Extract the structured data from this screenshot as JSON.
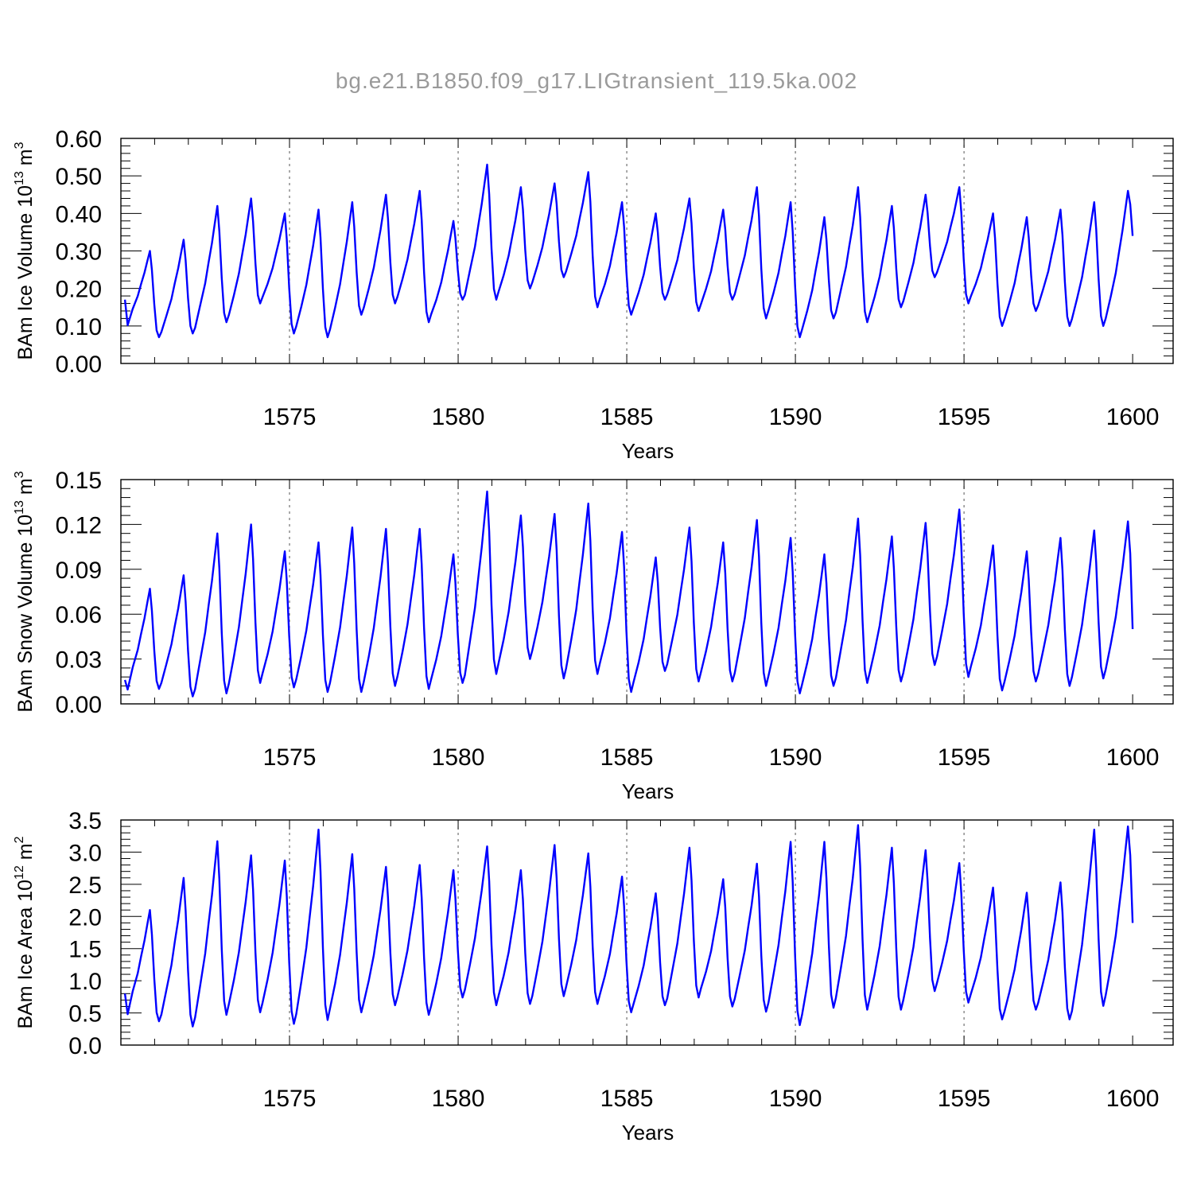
{
  "chart_data": {
    "title": "bg.e21.B1850.f09_g17.LIGtransient_119.5ka.002",
    "line_color": "#0000ff",
    "panels": [
      {
        "type": "line",
        "ylabel": {
          "main": "BAm Ice Volume 10",
          "exp": "13",
          "unit": " m",
          "unit_exp": "3"
        },
        "xlabel": "Years",
        "xlim": [
          1570.1,
          1600
        ],
        "ylim": [
          0,
          0.6
        ],
        "yticks": [
          "0.00",
          "0.10",
          "0.20",
          "0.30",
          "0.40",
          "0.50",
          "0.60"
        ],
        "ytick_values": [
          0,
          0.1,
          0.2,
          0.3,
          0.4,
          0.5,
          0.6
        ],
        "xticks": [
          "1575",
          "1580",
          "1585",
          "1590",
          "1595",
          "1600"
        ],
        "xtick_values": [
          1575,
          1580,
          1585,
          1590,
          1595,
          1600
        ],
        "grid_vertical_dashed": true,
        "peaks": [
          0.3,
          0.33,
          0.42,
          0.44,
          0.4,
          0.41,
          0.43,
          0.45,
          0.46,
          0.38,
          0.53,
          0.47,
          0.48,
          0.51,
          0.43,
          0.4,
          0.44,
          0.41,
          0.47,
          0.43,
          0.39,
          0.47,
          0.42,
          0.45,
          0.47,
          0.4,
          0.39,
          0.41,
          0.43,
          0.46
        ],
        "troughs": [
          0.07,
          0.08,
          0.11,
          0.16,
          0.08,
          0.07,
          0.13,
          0.16,
          0.11,
          0.17,
          0.17,
          0.2,
          0.23,
          0.15,
          0.13,
          0.17,
          0.14,
          0.17,
          0.12,
          0.07,
          0.12,
          0.11,
          0.15,
          0.23,
          0.16,
          0.1,
          0.14,
          0.1,
          0.1
        ],
        "start_value": 0.17,
        "end_value": 0.34
      },
      {
        "type": "line",
        "ylabel": {
          "main": "BAm Snow Volume 10",
          "exp": "13",
          "unit": " m",
          "unit_exp": "3"
        },
        "xlabel": "Years",
        "xlim": [
          1570.1,
          1600
        ],
        "ylim": [
          0,
          0.15
        ],
        "yticks": [
          "0.00",
          "0.03",
          "0.06",
          "0.09",
          "0.12",
          "0.15"
        ],
        "ytick_values": [
          0,
          0.03,
          0.06,
          0.09,
          0.12,
          0.15
        ],
        "xticks": [
          "1575",
          "1580",
          "1585",
          "1590",
          "1595",
          "1600"
        ],
        "xtick_values": [
          1575,
          1580,
          1585,
          1590,
          1595,
          1600
        ],
        "grid_vertical_dashed": true,
        "peaks": [
          0.077,
          0.086,
          0.114,
          0.12,
          0.102,
          0.108,
          0.118,
          0.117,
          0.117,
          0.1,
          0.142,
          0.126,
          0.127,
          0.134,
          0.115,
          0.098,
          0.118,
          0.108,
          0.123,
          0.111,
          0.1,
          0.124,
          0.112,
          0.121,
          0.13,
          0.106,
          0.102,
          0.111,
          0.116,
          0.122
        ],
        "troughs": [
          0.01,
          0.005,
          0.007,
          0.014,
          0.011,
          0.008,
          0.008,
          0.012,
          0.01,
          0.014,
          0.02,
          0.03,
          0.017,
          0.02,
          0.008,
          0.022,
          0.015,
          0.015,
          0.012,
          0.007,
          0.012,
          0.014,
          0.015,
          0.026,
          0.018,
          0.009,
          0.015,
          0.012,
          0.017
        ],
        "start_value": 0.016,
        "end_value": 0.05
      },
      {
        "type": "line",
        "ylabel": {
          "main": "BAm Ice Area 10",
          "exp": "12",
          "unit": " m",
          "unit_exp": "2"
        },
        "xlabel": "Years",
        "xlim": [
          1570.1,
          1600
        ],
        "ylim": [
          0,
          3.5
        ],
        "yticks": [
          "0.0",
          "0.5",
          "1.0",
          "1.5",
          "2.0",
          "2.5",
          "3.0",
          "3.5"
        ],
        "ytick_values": [
          0,
          0.5,
          1,
          1.5,
          2,
          2.5,
          3,
          3.5
        ],
        "xticks": [
          "1575",
          "1580",
          "1585",
          "1590",
          "1595",
          "1600"
        ],
        "xtick_values": [
          1575,
          1580,
          1585,
          1590,
          1595,
          1600
        ],
        "grid_vertical_dashed": true,
        "peaks": [
          2.1,
          2.6,
          3.17,
          2.95,
          2.87,
          3.35,
          2.97,
          2.77,
          2.8,
          2.72,
          3.09,
          2.72,
          3.11,
          2.98,
          2.62,
          2.36,
          3.07,
          2.58,
          2.82,
          3.16,
          3.16,
          3.42,
          3.07,
          3.03,
          2.83,
          2.45,
          2.37,
          2.53,
          3.35,
          3.4
        ],
        "troughs": [
          0.37,
          0.29,
          0.47,
          0.51,
          0.33,
          0.39,
          0.51,
          0.62,
          0.47,
          0.74,
          0.62,
          0.64,
          0.76,
          0.64,
          0.51,
          0.62,
          0.74,
          0.6,
          0.52,
          0.31,
          0.58,
          0.55,
          0.55,
          0.84,
          0.66,
          0.4,
          0.55,
          0.4,
          0.61
        ],
        "start_value": 0.8,
        "end_value": 1.9
      }
    ]
  }
}
